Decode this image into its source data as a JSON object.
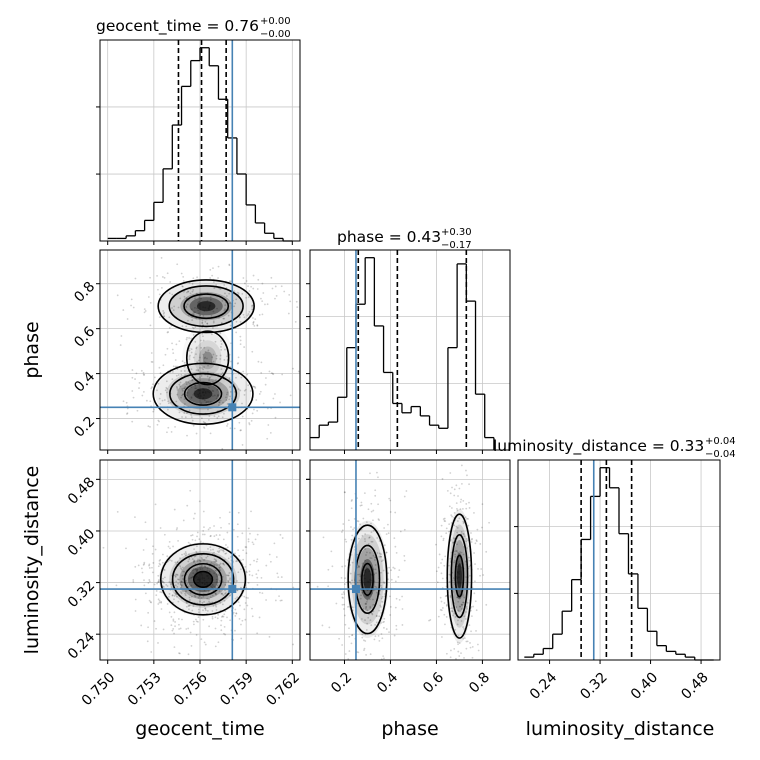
{
  "colors": {
    "truth": "#4682b4",
    "hist": "#000000",
    "grid": "#c8c8c8",
    "quantile": "#000000"
  },
  "chart_data": [
    {
      "type": "histogram",
      "panel": "geocent_time-1d",
      "title_main": "geocent_time = 0.76",
      "title_sup": "+0.00",
      "title_sub": "−0.00",
      "xlim": [
        0.7495,
        0.7625
      ],
      "bin_edges": [
        0.75,
        0.7506,
        0.7512,
        0.7518,
        0.7524,
        0.753,
        0.7536,
        0.7542,
        0.7548,
        0.7554,
        0.756,
        0.7566,
        0.7572,
        0.7578,
        0.7584,
        0.759,
        0.7596,
        0.7602,
        0.7608,
        0.7614,
        0.762
      ],
      "counts": [
        1,
        1,
        2,
        4,
        8,
        15,
        28,
        45,
        60,
        70,
        75,
        68,
        55,
        40,
        26,
        14,
        7,
        3,
        1,
        0
      ],
      "quantiles": [
        0.7546,
        0.7561,
        0.7577
      ],
      "truth": 0.7581
    },
    {
      "type": "histogram",
      "panel": "phase-1d",
      "title_main": "phase = 0.43",
      "title_sup": "+0.30",
      "title_sub": "−0.17",
      "xlim": [
        0.05,
        0.92
      ],
      "bin_edges": [
        0.05,
        0.09,
        0.13,
        0.17,
        0.21,
        0.25,
        0.29,
        0.33,
        0.37,
        0.41,
        0.45,
        0.49,
        0.53,
        0.57,
        0.61,
        0.65,
        0.69,
        0.73,
        0.77,
        0.81,
        0.85
      ],
      "counts": [
        4,
        8,
        9,
        17,
        33,
        47,
        62,
        40,
        25,
        15,
        12,
        14,
        11,
        8,
        7,
        33,
        60,
        48,
        18,
        4
      ],
      "quantiles": [
        0.26,
        0.43,
        0.73
      ],
      "truth": 0.25
    },
    {
      "type": "histogram",
      "panel": "luminosity_distance-1d",
      "title_main": "luminosity_distance = 0.33",
      "title_sup": "+0.04",
      "title_sub": "−0.04",
      "xlim": [
        0.19,
        0.51
      ],
      "bin_edges": [
        0.2,
        0.215,
        0.23,
        0.245,
        0.26,
        0.275,
        0.29,
        0.305,
        0.32,
        0.335,
        0.35,
        0.365,
        0.38,
        0.395,
        0.41,
        0.425,
        0.44,
        0.455,
        0.47,
        0.485,
        0.5
      ],
      "counts": [
        1,
        2,
        4,
        9,
        17,
        28,
        42,
        57,
        67,
        60,
        44,
        30,
        18,
        10,
        5,
        3,
        2,
        1,
        0,
        0
      ],
      "quantiles": [
        0.29,
        0.33,
        0.37
      ],
      "truth": 0.31
    },
    {
      "type": "contour",
      "panel": "phase-vs-geocent_time",
      "xlim": [
        0.7495,
        0.7625
      ],
      "ylim": [
        0.06,
        0.95
      ],
      "truth_x": 0.7581,
      "truth_y": 0.25
    },
    {
      "type": "contour",
      "panel": "luminosity_distance-vs-geocent_time",
      "xlim": [
        0.7495,
        0.7625
      ],
      "ylim": [
        0.2,
        0.51
      ],
      "truth_x": 0.7581,
      "truth_y": 0.31
    },
    {
      "type": "contour",
      "panel": "luminosity_distance-vs-phase",
      "xlim": [
        0.05,
        0.92
      ],
      "ylim": [
        0.2,
        0.51
      ],
      "truth_x": 0.25,
      "truth_y": 0.31
    }
  ],
  "axes": {
    "geocent_time": {
      "label": "geocent_time",
      "ticks": [
        0.75,
        0.753,
        0.756,
        0.759,
        0.762
      ],
      "tick_labels": [
        "0.750",
        "0.753",
        "0.756",
        "0.759",
        "0.762"
      ]
    },
    "phase": {
      "label": "phase",
      "ticks": [
        0.2,
        0.4,
        0.6,
        0.8
      ],
      "tick_labels": [
        "0.2",
        "0.4",
        "0.6",
        "0.8"
      ]
    },
    "luminosity_distance": {
      "label": "luminosity_distance",
      "ticks": [
        0.24,
        0.32,
        0.4,
        0.48
      ],
      "tick_labels": [
        "0.24",
        "0.32",
        "0.40",
        "0.48"
      ]
    }
  }
}
